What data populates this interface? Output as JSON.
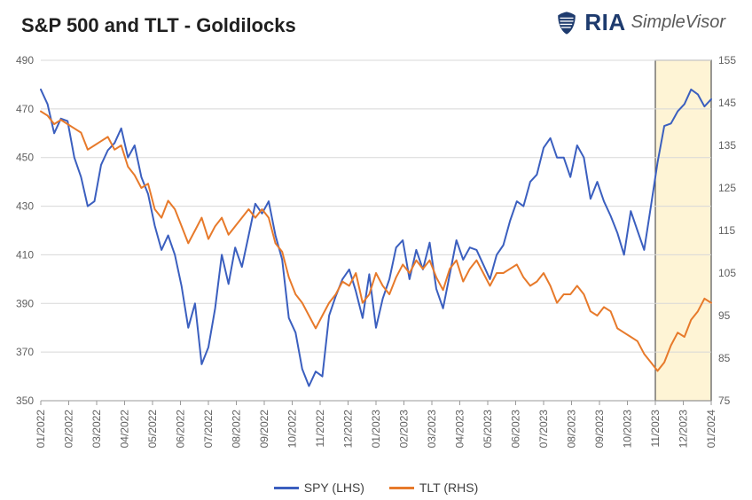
{
  "title": "S&P 500 and TLT - Goldilocks",
  "brand": {
    "ria": "RIA",
    "simplevisor": "SimpleVisor"
  },
  "chart": {
    "type": "line-dual-axis",
    "background_color": "#ffffff",
    "grid_color": "#d8d8d8",
    "axis_color": "#9a9a9a",
    "title_fontsize": 22,
    "label_fontsize": 12,
    "highlight_box": {
      "x_start": "11/2023",
      "x_end": "01/2024",
      "fill": "#fdebb3",
      "stroke": "#555555",
      "opacity": 0.55
    },
    "x": {
      "categories": [
        "01/2022",
        "02/2022",
        "03/2022",
        "04/2022",
        "05/2022",
        "06/2022",
        "07/2022",
        "08/2022",
        "09/2022",
        "10/2022",
        "11/2022",
        "12/2022",
        "01/2023",
        "02/2023",
        "03/2023",
        "04/2023",
        "05/2023",
        "06/2023",
        "07/2023",
        "08/2023",
        "09/2023",
        "10/2023",
        "11/2023",
        "12/2023",
        "01/2024"
      ],
      "tick_rotation": -90
    },
    "y_left": {
      "min": 350,
      "max": 490,
      "ticks": [
        350,
        370,
        390,
        410,
        430,
        450,
        470,
        490
      ]
    },
    "y_right": {
      "min": 75,
      "max": 155,
      "ticks": [
        75,
        85,
        95,
        105,
        115,
        125,
        135,
        145,
        155
      ]
    },
    "series": [
      {
        "name": "SPY (LHS)",
        "axis": "left",
        "color": "#3b5fbf",
        "line_width": 2,
        "data": [
          478,
          472,
          460,
          466,
          465,
          450,
          442,
          430,
          432,
          447,
          453,
          456,
          462,
          450,
          455,
          442,
          435,
          422,
          412,
          418,
          410,
          397,
          380,
          390,
          365,
          372,
          388,
          410,
          398,
          413,
          405,
          418,
          431,
          427,
          432,
          418,
          408,
          384,
          378,
          363,
          356,
          362,
          360,
          385,
          393,
          400,
          404,
          395,
          384,
          402,
          380,
          392,
          400,
          413,
          416,
          400,
          412,
          404,
          415,
          396,
          388,
          402,
          416,
          408,
          413,
          412,
          406,
          400,
          410,
          414,
          424,
          432,
          430,
          440,
          443,
          454,
          458,
          450,
          450,
          442,
          455,
          450,
          433,
          440,
          432,
          426,
          419,
          410,
          428,
          420,
          412,
          430,
          448,
          463,
          464,
          469,
          472,
          478,
          476,
          471,
          474
        ]
      },
      {
        "name": "TLT (RHS)",
        "axis": "right",
        "color": "#e77a2b",
        "line_width": 2,
        "data": [
          143,
          142,
          140,
          141,
          140,
          139,
          138,
          134,
          135,
          136,
          137,
          134,
          135,
          130,
          128,
          125,
          126,
          120,
          118,
          122,
          120,
          116,
          112,
          115,
          118,
          113,
          116,
          118,
          114,
          116,
          118,
          120,
          118,
          120,
          118,
          112,
          110,
          104,
          100,
          98,
          95,
          92,
          95,
          98,
          100,
          103,
          102,
          105,
          98,
          100,
          105,
          102,
          100,
          104,
          107,
          105,
          108,
          106,
          108,
          104,
          101,
          106,
          108,
          103,
          106,
          108,
          105,
          102,
          105,
          105,
          106,
          107,
          104,
          102,
          103,
          105,
          102,
          98,
          100,
          100,
          102,
          100,
          96,
          95,
          97,
          96,
          92,
          91,
          90,
          89,
          86,
          84,
          82,
          84,
          88,
          91,
          90,
          94,
          96,
          99,
          98
        ]
      }
    ],
    "legend": {
      "position": "bottom-center",
      "items": [
        {
          "label": "SPY (LHS)",
          "color": "#3b5fbf"
        },
        {
          "label": "TLT (RHS)",
          "color": "#e77a2b"
        }
      ]
    }
  }
}
